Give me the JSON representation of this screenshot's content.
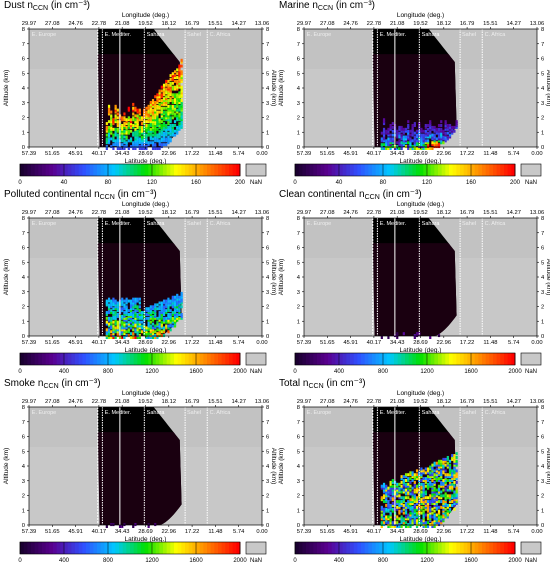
{
  "chart_data": [
    {
      "type": "heatmap",
      "title_main": "Dust n",
      "title_sub": "CCN",
      "title_unit": " (in cm⁻³)",
      "colorbar_ticks": [
        "0",
        "40",
        "80",
        "120",
        "160",
        "200"
      ],
      "colorbar_range": [
        0,
        200
      ],
      "nan_label": "NaN"
    },
    {
      "type": "heatmap",
      "title_main": "Marine n",
      "title_sub": "CCN",
      "title_unit": " (in cm⁻³)",
      "colorbar_ticks": [
        "0",
        "40",
        "80",
        "120",
        "160",
        "200"
      ],
      "colorbar_range": [
        0,
        200
      ],
      "nan_label": "NaN"
    },
    {
      "type": "heatmap",
      "title_main": "Polluted continental n",
      "title_sub": "CCN",
      "title_unit": " (in cm⁻³)",
      "colorbar_ticks": [
        "0",
        "400",
        "800",
        "1200",
        "1600",
        "2000"
      ],
      "colorbar_range": [
        0,
        2000
      ],
      "nan_label": "NaN"
    },
    {
      "type": "heatmap",
      "title_main": "Clean continental n",
      "title_sub": "CCN",
      "title_unit": " (in cm⁻³)",
      "colorbar_ticks": [
        "0",
        "400",
        "800",
        "1200",
        "1600",
        "2000"
      ],
      "colorbar_range": [
        0,
        2000
      ],
      "nan_label": "NaN"
    },
    {
      "type": "heatmap",
      "title_main": "Smoke n",
      "title_sub": "CCN",
      "title_unit": " (in cm⁻³)",
      "colorbar_ticks": [
        "0",
        "400",
        "800",
        "1200",
        "1600",
        "2000"
      ],
      "colorbar_range": [
        0,
        2000
      ],
      "nan_label": "NaN"
    },
    {
      "type": "heatmap",
      "title_main": "Total n",
      "title_sub": "CCN",
      "title_unit": " (in cm⁻³)",
      "colorbar_ticks": [
        "0",
        "400",
        "800",
        "1200",
        "1600",
        "2000"
      ],
      "colorbar_range": [
        0,
        2000
      ],
      "nan_label": "NaN"
    }
  ],
  "shared_axes": {
    "xlabel_top": "Longitude (deg.)",
    "xlabel_bottom": "Latitude (deg.)",
    "ylabel_left": "Altitude (km)",
    "ylabel_right": "Altitude (km)",
    "lon_ticks": [
      "29.97",
      "27.08",
      "24.76",
      "22.78",
      "21.08",
      "19.52",
      "18.12",
      "16.79",
      "15.51",
      "14.27",
      "13.06"
    ],
    "lat_ticks": [
      "57.39",
      "51.65",
      "45.91",
      "40.17",
      "34.43",
      "28.69",
      "22.96",
      "17.22",
      "11.48",
      "5.74",
      "0.00"
    ],
    "alt_ticks": [
      "0",
      "1",
      "2",
      "3",
      "4",
      "5",
      "6",
      "7",
      "8"
    ],
    "alt_range": [
      0,
      8
    ],
    "regions": [
      "E. Europe",
      "E. Mediter.",
      "Sahara",
      "Sahel",
      "C. Africa"
    ]
  },
  "colors": {
    "nan_gray": "#c8c8c8",
    "night_black": "#000000",
    "dark_purple": "#1a0010",
    "colormap": [
      "#1a0030",
      "#5a0090",
      "#3050ff",
      "#00c8ff",
      "#00e000",
      "#ffff00",
      "#ff8000",
      "#ff0000"
    ]
  }
}
